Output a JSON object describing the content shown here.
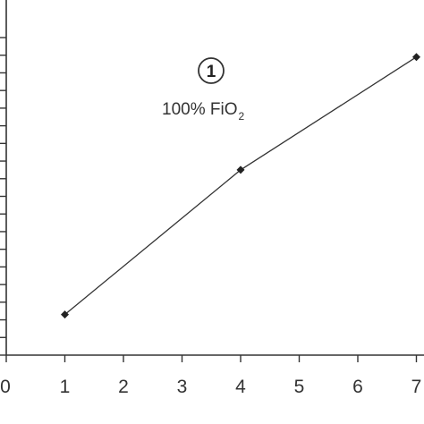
{
  "chart_data": {
    "type": "line",
    "x": [
      1,
      4,
      7
    ],
    "y": [
      2.3,
      10.5,
      16.9
    ],
    "x_ticks": [
      "0",
      "1",
      "2",
      "3",
      "4",
      "5",
      "6",
      "7"
    ],
    "xlim": [
      0,
      7
    ],
    "ylim": [
      0,
      18
    ],
    "y_minor_ticks": 18,
    "grid": false,
    "marker": "diamond",
    "line_color": "#333333",
    "annotation": {
      "badge": "1",
      "text_main": "100% FiO",
      "text_sub": "2"
    }
  }
}
